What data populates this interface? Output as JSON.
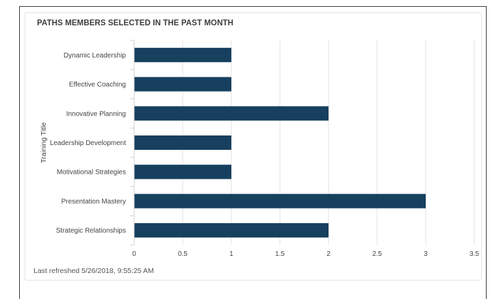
{
  "title": "PATHS MEMBERS SELECTED IN THE PAST MONTH",
  "footer": "Last refreshed 5/26/2018, 9:55:25 AM",
  "colors": {
    "bar": "#17405f",
    "grid": "#e2e2e2",
    "axis": "#cfcfcf"
  },
  "chart_data": {
    "type": "bar",
    "orientation": "horizontal",
    "categories": [
      "Dynamic Leadership",
      "Effective Coaching",
      "Innovative Planning",
      "Leadership Development",
      "Motivational Strategies",
      "Presentation Mastery",
      "Strategic Relationships"
    ],
    "values": [
      1,
      1,
      2,
      1,
      1,
      3,
      2
    ],
    "title": "PATHS MEMBERS SELECTED IN THE PAST MONTH",
    "xlabel": "",
    "ylabel": "Training Title",
    "xlim": [
      0,
      3.5
    ],
    "xticks": [
      0,
      0.5,
      1,
      1.5,
      2,
      2.5,
      3,
      3.5
    ],
    "xtick_labels": [
      "0",
      "0.5",
      "1",
      "1.5",
      "2",
      "2.5",
      "3",
      "3.5"
    ],
    "grid": true,
    "legend": "none"
  }
}
